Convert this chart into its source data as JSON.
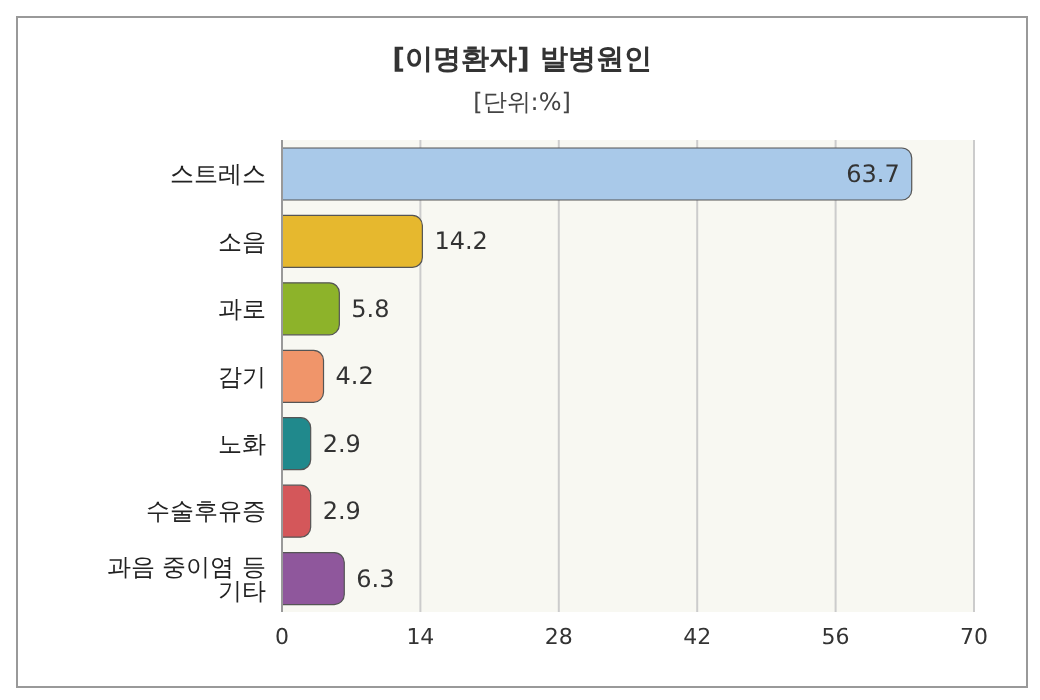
{
  "chart_data": {
    "type": "bar",
    "orientation": "horizontal",
    "title": "[이명환자] 발병원인",
    "subtitle": "[단위:%]",
    "categories": [
      "스트레스",
      "소음",
      "과로",
      "감기",
      "노화",
      "수술후유증",
      "과음 중이염 등 기타"
    ],
    "values": [
      63.7,
      14.2,
      5.8,
      4.2,
      2.9,
      2.9,
      6.3
    ],
    "colors": [
      "#a9c9e9",
      "#e6b82e",
      "#8db32a",
      "#f0956a",
      "#20898c",
      "#d4575a",
      "#8f579c"
    ],
    "xlim": [
      0,
      70
    ],
    "xticks": [
      0,
      14,
      28,
      42,
      56,
      70
    ],
    "grid": "x",
    "data_labels": true
  }
}
